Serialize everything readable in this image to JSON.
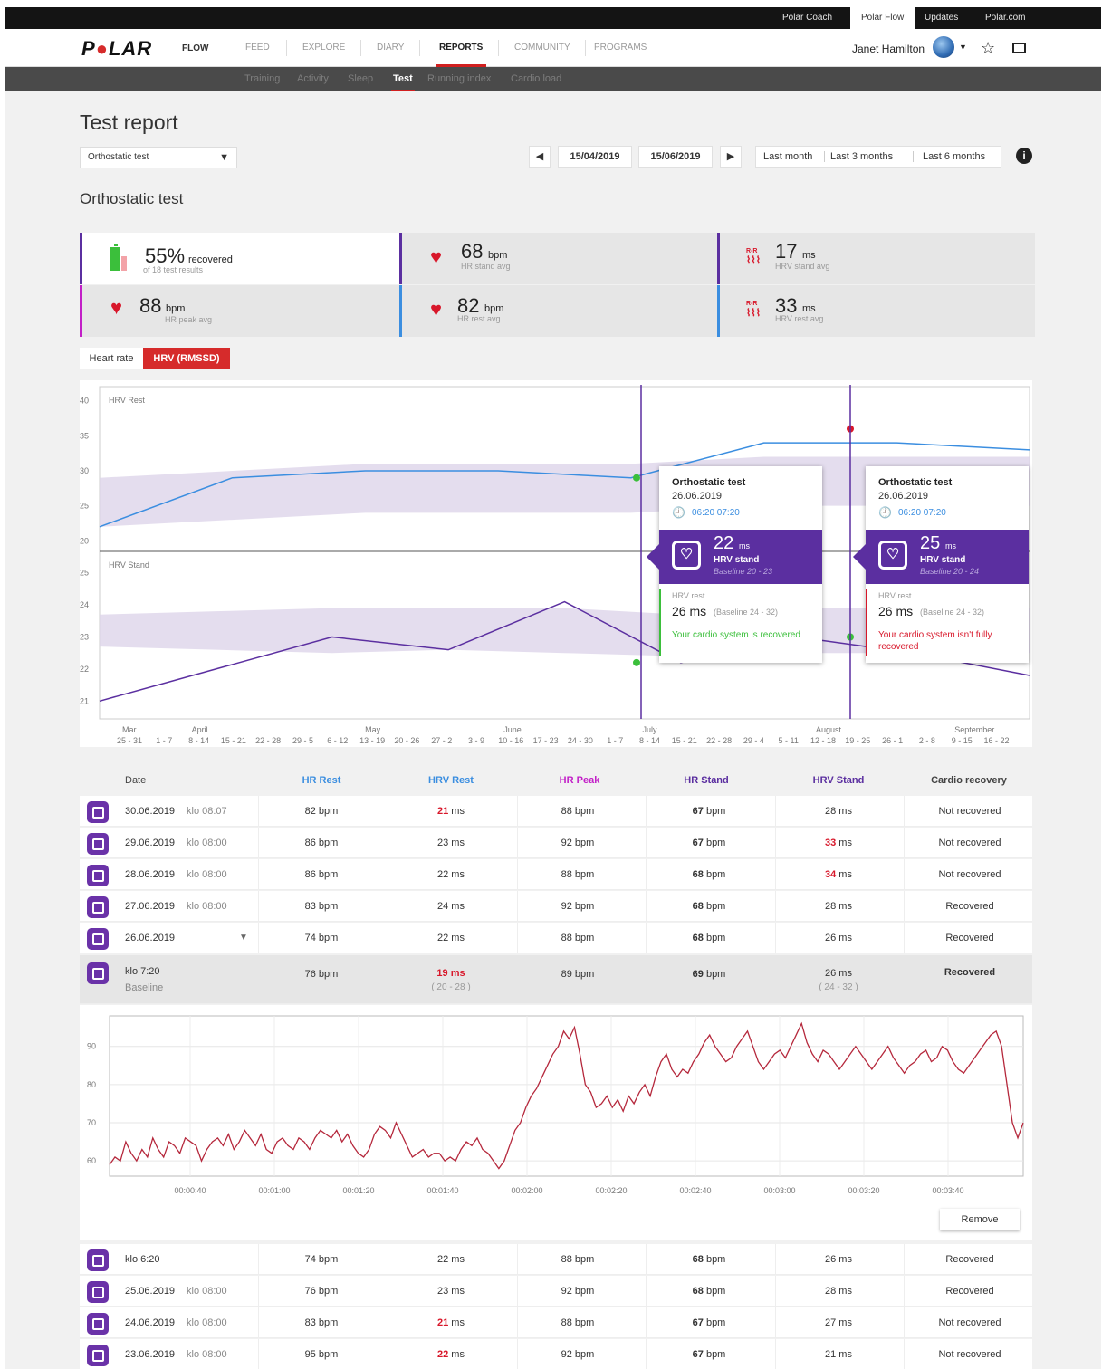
{
  "top_links": [
    "Polar Coach",
    "Polar Flow",
    "Updates",
    "Polar.com"
  ],
  "top_links_active": 1,
  "brand": {
    "logo": "POLAR",
    "logo_pre": "P",
    "logo_dot": "●",
    "logo_post": "LAR",
    "product": "FLOW"
  },
  "nav": [
    "FEED",
    "EXPLORE",
    "DIARY",
    "REPORTS",
    "COMMUNITY",
    "PROGRAMS"
  ],
  "nav_active": 3,
  "user": {
    "name": "Janet Hamilton"
  },
  "subnav": [
    "Training",
    "Activity",
    "Sleep",
    "Test",
    "Running index",
    "Cardio load"
  ],
  "subnav_active": 3,
  "page": {
    "title": "Test report",
    "section_title": "Orthostatic test"
  },
  "test_select": "Orthostatic test",
  "date_range": {
    "start": "15/04/2019",
    "end": "15/06/2019"
  },
  "quick_ranges": [
    "Last month",
    "Last 3 months",
    "Last 6 months"
  ],
  "summary": {
    "recovered": {
      "value": "55%",
      "unit": "recovered",
      "label": "of 18 test results"
    },
    "hr_peak": {
      "value": "88",
      "unit": "bpm",
      "label": "HR peak avg"
    },
    "hr_stand": {
      "value": "68",
      "unit": "bpm",
      "label": "HR stand avg"
    },
    "hr_rest": {
      "value": "82",
      "unit": "bpm",
      "label": "HR rest avg"
    },
    "hrv_stand": {
      "value": "17",
      "unit": "ms",
      "label": "HRV stand avg"
    },
    "hrv_rest": {
      "value": "33",
      "unit": "ms",
      "label": "HRV rest avg"
    },
    "hrv_icon_text": "R-R"
  },
  "toggle": {
    "heart_rate": "Heart rate",
    "hrv": "HRV (RMSSD)"
  },
  "colors": {
    "purple": "#5b2fa0",
    "blue": "#3b8ee0",
    "red": "#d8172a",
    "green": "#3bbf3b",
    "magenta": "#c21fc7",
    "band": "#ddd5ea"
  },
  "chart_data": [
    {
      "type": "line",
      "title": "HRV Rest",
      "ylim": [
        19,
        41
      ],
      "y_ticks": [
        20,
        25,
        30,
        35,
        40
      ],
      "series": [
        {
          "values": [
            22,
            29,
            30,
            30,
            29,
            34,
            34,
            33
          ]
        }
      ],
      "baseline_band": {
        "lower": [
          22,
          23,
          24,
          24,
          24,
          25,
          25,
          25
        ],
        "upper": [
          29,
          30,
          31,
          31,
          31,
          32,
          32,
          32
        ]
      },
      "markers": [
        {
          "label": "green",
          "value": 29
        },
        {
          "label": "red",
          "value": 36
        }
      ]
    },
    {
      "type": "line",
      "title": "HRV Stand",
      "ylim": [
        20.5,
        25.5
      ],
      "y_ticks": [
        21,
        22,
        23,
        24,
        25
      ],
      "series": [
        {
          "values": [
            21,
            22,
            23,
            22.6,
            24.1,
            22.2,
            23,
            22.5,
            21.8
          ]
        }
      ],
      "baseline_band": {
        "lower": [
          22.7,
          22.6,
          22.5,
          22.6,
          22.5,
          22.4,
          22.5,
          22.5,
          22.5
        ],
        "upper": [
          23.7,
          23.8,
          23.9,
          23.9,
          23.9,
          23.7,
          23.9,
          23.9,
          23.9
        ]
      },
      "month_labels": [
        "Mar",
        "April",
        "May",
        "June",
        "July",
        "August",
        "September"
      ],
      "week_labels": [
        "25 - 31",
        "1 - 7",
        "8 - 14",
        "15 - 21",
        "22 - 28",
        "29 - 5",
        "6 - 12",
        "13 - 19",
        "20 - 26",
        "27 - 2",
        "3 - 9",
        "10 - 16",
        "17 - 23",
        "24 - 30",
        "1 - 7",
        "8 - 14",
        "15 - 21",
        "22 - 28",
        "29 - 4",
        "5 - 11",
        "12 - 18",
        "19 - 25",
        "26 - 1",
        "2 - 8",
        "9 - 15",
        "16 - 22"
      ]
    },
    {
      "type": "line",
      "ylim": [
        56,
        98
      ],
      "y_ticks": [
        60,
        70,
        80,
        90
      ],
      "x_ticks": [
        "00:00:40",
        "00:01:00",
        "00:01:20",
        "00:01:40",
        "00:02:00",
        "00:02:20",
        "00:02:40",
        "00:03:00",
        "00:03:20",
        "00:03:40"
      ],
      "series": [
        {
          "values": [
            59,
            61,
            60,
            65,
            62,
            60,
            63,
            61,
            66,
            63,
            61,
            65,
            64,
            62,
            66,
            65,
            64,
            60,
            63,
            65,
            66,
            64,
            67,
            63,
            65,
            68,
            66,
            64,
            67,
            63,
            62,
            65,
            66,
            64,
            63,
            66,
            65,
            63,
            66,
            68,
            67,
            66,
            68,
            65,
            67,
            64,
            62,
            61,
            63,
            67,
            69,
            68,
            66,
            70,
            67,
            64,
            61,
            62,
            63,
            61,
            62,
            62,
            60,
            61,
            60,
            63,
            65,
            64,
            66,
            63,
            62,
            60,
            58,
            60,
            64,
            68,
            70,
            74,
            77,
            79,
            82,
            85,
            88,
            90,
            94,
            92,
            95,
            88,
            80,
            78,
            74,
            75,
            77,
            74,
            76,
            73,
            77,
            75,
            78,
            80,
            77,
            82,
            86,
            88,
            84,
            82,
            84,
            83,
            86,
            88,
            91,
            93,
            90,
            88,
            86,
            87,
            90,
            92,
            94,
            90,
            86,
            84,
            86,
            88,
            89,
            87,
            90,
            93,
            96,
            91,
            88,
            86,
            89,
            88,
            86,
            84,
            86,
            88,
            90,
            88,
            86,
            84,
            86,
            88,
            90,
            87,
            85,
            83,
            85,
            86,
            88,
            89,
            86,
            87,
            90,
            89,
            86,
            84,
            83,
            85,
            87,
            89,
            91,
            93,
            94,
            90,
            80,
            70,
            66,
            70
          ]
        }
      ]
    }
  ],
  "tooltips": [
    {
      "title": "Orthostatic test",
      "date": "26.06.2019",
      "clock": "🕘",
      "times": "06:20  07:20",
      "value": "22",
      "unit": "ms",
      "label": "HRV stand",
      "baseline": "Baseline 20 - 23",
      "rest_label": "HRV rest",
      "rest_value": "26 ms",
      "rest_baseline": "(Baseline 24 - 32)",
      "message": "Your cardio system is recovered",
      "status": "ok"
    },
    {
      "title": "Orthostatic test",
      "date": "26.06.2019",
      "clock": "🕘",
      "times": "06:20  07:20",
      "value": "25",
      "unit": "ms",
      "label": "HRV stand",
      "baseline": "Baseline 20 - 24",
      "rest_label": "HRV rest",
      "rest_value": "26 ms",
      "rest_baseline": "(Baseline 24 - 32)",
      "message": "Your cardio system isn't fully recovered",
      "status": "bad"
    }
  ],
  "table": {
    "headers": [
      "Date",
      "HR Rest",
      "HRV Rest",
      "HR Peak",
      "HR Stand",
      "HRV Stand",
      "Cardio recovery"
    ],
    "rows_top": [
      {
        "date": "30.06.2019",
        "time": "klo 08:07",
        "hr_rest": "82 bpm",
        "hrv_rest_v": "21",
        "hrv_rest_u": " ms",
        "hrv_rest_flag": "red",
        "hr_peak": "88 bpm",
        "hr_stand_v": "67",
        "hr_stand_u": " bpm",
        "hrv_stand_v": "28",
        "hrv_stand_u": " ms",
        "hrv_stand_flag": "",
        "recovery": "Not recovered",
        "rec": "bad"
      },
      {
        "date": "29.06.2019",
        "time": "klo 08:00",
        "hr_rest": "86 bpm",
        "hrv_rest_v": "23",
        "hrv_rest_u": " ms",
        "hrv_rest_flag": "",
        "hr_peak": "92 bpm",
        "hr_stand_v": "67",
        "hr_stand_u": " bpm",
        "hrv_stand_v": "33",
        "hrv_stand_u": " ms",
        "hrv_stand_flag": "red",
        "recovery": "Not recovered",
        "rec": "bad"
      },
      {
        "date": "28.06.2019",
        "time": "klo 08:00",
        "hr_rest": "86 bpm",
        "hrv_rest_v": "22",
        "hrv_rest_u": " ms",
        "hrv_rest_flag": "",
        "hr_peak": "88 bpm",
        "hr_stand_v": "68",
        "hr_stand_u": " bpm",
        "hrv_stand_v": "34",
        "hrv_stand_u": " ms",
        "hrv_stand_flag": "red",
        "recovery": "Not recovered",
        "rec": "bad"
      },
      {
        "date": "27.06.2019",
        "time": "klo 08:00",
        "hr_rest": "83 bpm",
        "hrv_rest_v": "24",
        "hrv_rest_u": " ms",
        "hrv_rest_flag": "",
        "hr_peak": "92 bpm",
        "hr_stand_v": "68",
        "hr_stand_u": " bpm",
        "hrv_stand_v": "28",
        "hrv_stand_u": " ms",
        "hrv_stand_flag": "",
        "recovery": "Recovered",
        "rec": "ok"
      },
      {
        "date": "26.06.2019",
        "time": "",
        "hr_rest": "74 bpm",
        "hrv_rest_v": "22",
        "hrv_rest_u": " ms",
        "hrv_rest_flag": "",
        "hr_peak": "88 bpm",
        "hr_stand_v": "68",
        "hr_stand_u": " bpm",
        "hrv_stand_v": "26",
        "hrv_stand_u": " ms",
        "hrv_stand_flag": "",
        "recovery": "Recovered",
        "rec": "ok",
        "expand": "▼"
      }
    ],
    "expanded": {
      "time": "klo 7:20",
      "sub": "Baseline",
      "hr_rest": "76 bpm",
      "hrv_rest_v": "19",
      "hrv_rest_u": " ms",
      "hrv_rest_range": "( 20 - 28 )",
      "hr_peak": "89 bpm",
      "hr_stand_v": "69",
      "hr_stand_u": " bpm",
      "hrv_stand": "26 ms",
      "hrv_stand_range": "( 24 - 32 )",
      "recovery": "Recovered"
    },
    "remove_label": "Remove",
    "rows_bottom": [
      {
        "date": "klo 6:20",
        "time": "",
        "hr_rest": "74 bpm",
        "hrv_rest_v": "22",
        "hrv_rest_u": " ms",
        "hrv_rest_flag": "",
        "hr_peak": "88 bpm",
        "hr_stand_v": "68",
        "hr_stand_u": " bpm",
        "hrv_stand_v": "26",
        "hrv_stand_u": " ms",
        "hrv_stand_flag": "",
        "recovery": "Recovered",
        "rec": "ok"
      },
      {
        "date": "25.06.2019",
        "time": "klo 08:00",
        "hr_rest": "76 bpm",
        "hrv_rest_v": "23",
        "hrv_rest_u": " ms",
        "hrv_rest_flag": "",
        "hr_peak": "92 bpm",
        "hr_stand_v": "68",
        "hr_stand_u": " bpm",
        "hrv_stand_v": "28",
        "hrv_stand_u": " ms",
        "hrv_stand_flag": "",
        "recovery": "Recovered",
        "rec": "ok"
      },
      {
        "date": "24.06.2019",
        "time": "klo 08:00",
        "hr_rest": "83 bpm",
        "hrv_rest_v": "21",
        "hrv_rest_u": " ms",
        "hrv_rest_flag": "red",
        "hr_peak": "88 bpm",
        "hr_stand_v": "67",
        "hr_stand_u": " bpm",
        "hrv_stand_v": "27",
        "hrv_stand_u": " ms",
        "hrv_stand_flag": "",
        "recovery": "Not recovered",
        "rec": "bad"
      },
      {
        "date": "23.06.2019",
        "time": "klo 08:00",
        "hr_rest": "95 bpm",
        "hrv_rest_v": "22",
        "hrv_rest_u": " ms",
        "hrv_rest_flag": "red",
        "hr_peak": "92 bpm",
        "hr_stand_v": "67",
        "hr_stand_u": " bpm",
        "hrv_stand_v": "21",
        "hrv_stand_u": " ms",
        "hrv_stand_flag": "",
        "recovery": "Not recovered",
        "rec": "bad"
      }
    ]
  }
}
